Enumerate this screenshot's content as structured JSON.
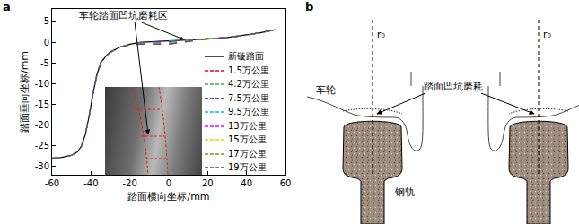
{
  "chart_data": {
    "type": "line",
    "x_label": "踏面横向坐标/mm",
    "y_label": "踏面垂向坐标/mm",
    "annotations": [
      {
        "text": "车轮踏面凹坑磨耗区"
      }
    ],
    "x": [
      -60,
      -55,
      -50,
      -47,
      -45,
      -43,
      -41,
      -39,
      -37,
      -35,
      -32,
      -30,
      -25,
      -20,
      -15,
      -10,
      -5,
      0,
      5,
      10,
      15,
      20,
      25,
      30,
      35,
      40,
      45,
      50,
      55
    ],
    "series": [
      {
        "name": "新镟踏面",
        "color": "#000000",
        "line_style": "solid",
        "values": [
          -28,
          -27.8,
          -27.3,
          -26.5,
          -25.2,
          -22.5,
          -18,
          -12.5,
          -8,
          -5,
          -3.2,
          -2.4,
          -1.2,
          -0.5,
          -0.1,
          0.1,
          0.2,
          0.3,
          0.4,
          0.5,
          0.6,
          0.8,
          0.9,
          1.1,
          1.4,
          1.7,
          2.1,
          2.5,
          3
        ]
      },
      {
        "name": "1.5万公里",
        "color": "#ff0000",
        "line_style": "dash",
        "values": [
          -28,
          -27.8,
          -27.3,
          -26.5,
          -25.2,
          -22.5,
          -18,
          -12.5,
          -8,
          -5,
          -3.2,
          -2.4,
          -1.2,
          -0.53,
          -0.15,
          0.03,
          0.1,
          0.2,
          0.33,
          0.45,
          0.58,
          0.8,
          0.9,
          1.1,
          1.4,
          1.7,
          2.1,
          2.5,
          3
        ]
      },
      {
        "name": "4.2万公里",
        "color": "#33bb33",
        "line_style": "dash",
        "values": [
          -28,
          -27.8,
          -27.3,
          -26.5,
          -25.2,
          -22.5,
          -18,
          -12.5,
          -8,
          -5,
          -3.2,
          -2.4,
          -1.2,
          -0.55,
          -0.2,
          -0.05,
          0,
          0.1,
          0.25,
          0.4,
          0.55,
          0.8,
          0.9,
          1.1,
          1.4,
          1.7,
          2.1,
          2.5,
          3
        ]
      },
      {
        "name": "7.5万公里",
        "color": "#0000ff",
        "line_style": "dash",
        "values": [
          -28,
          -27.8,
          -27.3,
          -26.5,
          -25.2,
          -22.5,
          -18,
          -12.5,
          -8,
          -5,
          -3.2,
          -2.4,
          -1.2,
          -0.58,
          -0.25,
          -0.13,
          -0.1,
          0,
          0.18,
          0.35,
          0.53,
          0.8,
          0.9,
          1.1,
          1.4,
          1.7,
          2.1,
          2.5,
          3
        ]
      },
      {
        "name": "9.5万公里",
        "color": "#00c8c8",
        "line_style": "dash",
        "values": [
          -28,
          -27.8,
          -27.3,
          -26.5,
          -25.2,
          -22.5,
          -18,
          -12.5,
          -8,
          -5,
          -3.2,
          -2.4,
          -1.2,
          -0.6,
          -0.3,
          -0.2,
          -0.2,
          -0.1,
          0.1,
          0.3,
          0.5,
          0.8,
          0.9,
          1.1,
          1.4,
          1.7,
          2.1,
          2.5,
          3
        ]
      },
      {
        "name": "13万公里",
        "color": "#ff00ff",
        "line_style": "dash",
        "values": [
          -28,
          -27.8,
          -27.3,
          -26.5,
          -25.2,
          -22.5,
          -18,
          -12.5,
          -8,
          -5,
          -3.2,
          -2.4,
          -1.2,
          -0.63,
          -0.35,
          -0.28,
          -0.3,
          -0.2,
          0.03,
          0.25,
          0.48,
          0.8,
          0.9,
          1.1,
          1.4,
          1.7,
          2.1,
          2.5,
          3
        ]
      },
      {
        "name": "15万公里",
        "color": "#e6d800",
        "line_style": "dash",
        "values": [
          -28,
          -27.8,
          -27.3,
          -26.5,
          -25.2,
          -22.5,
          -18,
          -12.5,
          -8,
          -5,
          -3.2,
          -2.4,
          -1.2,
          -0.65,
          -0.4,
          -0.35,
          -0.4,
          -0.3,
          -0.05,
          0.2,
          0.45,
          0.8,
          0.9,
          1.1,
          1.4,
          1.7,
          2.1,
          2.5,
          3
        ]
      },
      {
        "name": "17万公里",
        "color": "#a08020",
        "line_style": "dash",
        "values": [
          -28,
          -27.8,
          -27.3,
          -26.5,
          -25.2,
          -22.5,
          -18,
          -12.5,
          -8,
          -5,
          -3.2,
          -2.4,
          -1.2,
          -0.68,
          -0.45,
          -0.43,
          -0.5,
          -0.4,
          -0.13,
          0.15,
          0.43,
          0.8,
          0.9,
          1.1,
          1.4,
          1.7,
          2.1,
          2.5,
          3
        ]
      },
      {
        "name": "19万公里",
        "color": "#5a3d9a",
        "line_style": "dash",
        "values": [
          -28,
          -27.8,
          -27.3,
          -26.5,
          -25.2,
          -22.5,
          -18,
          -12.5,
          -8,
          -5,
          -3.2,
          -2.4,
          -1.2,
          -0.7,
          -0.5,
          -0.5,
          -0.6,
          -0.5,
          -0.2,
          0.1,
          0.4,
          0.8,
          0.9,
          1.1,
          1.4,
          1.7,
          2.1,
          2.5,
          3
        ]
      }
    ],
    "xlim": [
      -60,
      60
    ],
    "ylim": [
      -32,
      8
    ],
    "xticks": [
      -60,
      -40,
      -20,
      0,
      20,
      40,
      60
    ],
    "yticks": [
      -30,
      -25,
      -20,
      -15,
      -10,
      -5,
      0,
      5
    ],
    "grid": false,
    "legend": "right"
  },
  "panel_labels": [
    "a",
    "b"
  ],
  "diagram": {
    "wheel_label": "车轮",
    "wear_label": "踏面凹坑磨耗",
    "rail_label": "钢轨",
    "radius_labels": [
      "r₀",
      "r₀"
    ]
  }
}
